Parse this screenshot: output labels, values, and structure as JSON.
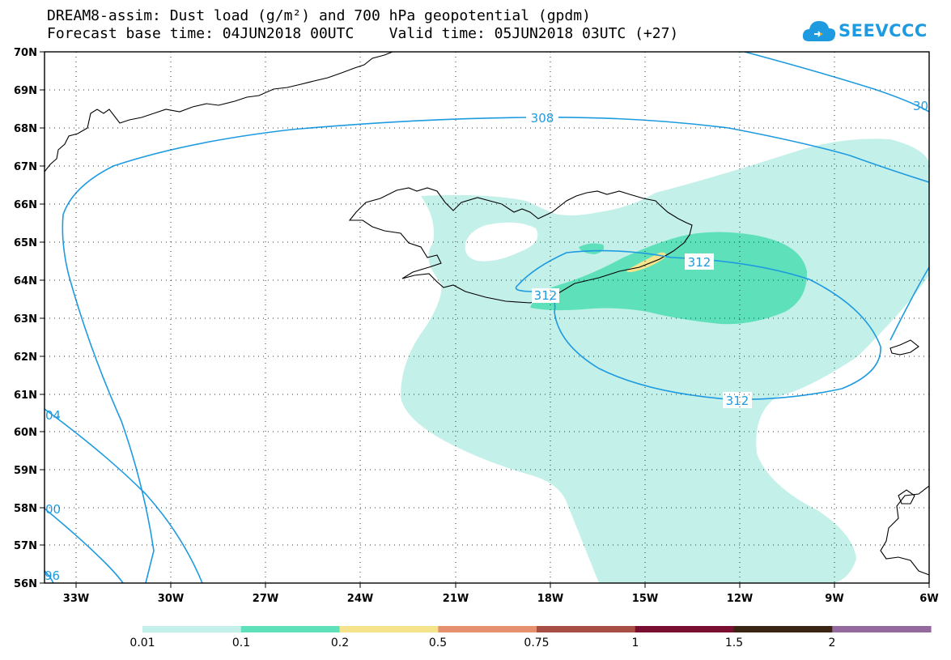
{
  "title": {
    "line1": "DREAM8-assim: Dust load (g/m²) and 700 hPa geopotential (gpdm)",
    "line2": "Forecast base time: 04JUN2018 00UTC    Valid time: 05JUN2018 03UTC (+27)"
  },
  "logo": {
    "text": "SEEVCCC",
    "icon": "cloud-icon"
  },
  "map": {
    "lat_labels": [
      "70N",
      "69N",
      "68N",
      "67N",
      "66N",
      "65N",
      "64N",
      "63N",
      "62N",
      "61N",
      "60N",
      "59N",
      "58N",
      "57N",
      "56N"
    ],
    "lon_labels": [
      "33W",
      "30W",
      "27W",
      "24W",
      "21W",
      "18W",
      "15W",
      "12W",
      "9W",
      "6W"
    ],
    "lat_range": [
      56,
      70
    ],
    "lon_range": [
      -34.5,
      -6
    ],
    "grid": "dotted",
    "contour_color": "#1e9be0",
    "contour_labels": [
      "308",
      "312",
      "312",
      "312",
      "30",
      "04",
      "00",
      "96"
    ]
  },
  "colorbar": {
    "tick_labels": [
      "0.01",
      "0.1",
      "0.2",
      "0.5",
      "0.75",
      "1",
      "1.5",
      "2"
    ],
    "colors": [
      "#c4f0ea",
      "#5ee1ba",
      "#f5e48c",
      "#e6906e",
      "#a84e45",
      "#7a0e30",
      "#3b2512",
      "#94699e"
    ]
  }
}
